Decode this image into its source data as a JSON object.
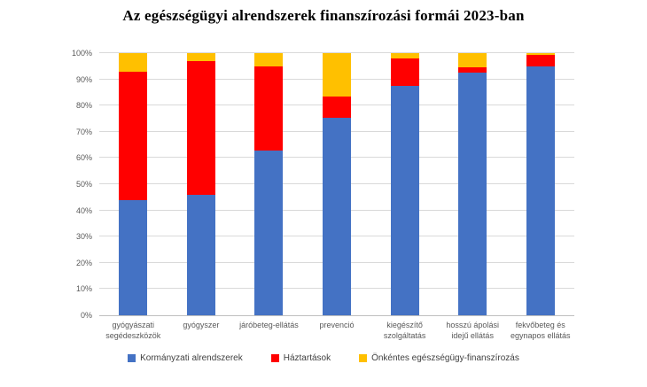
{
  "title": "Az egészségügyi alrendszerek finanszírozási formái 2023-ban",
  "chart_data": {
    "type": "bar",
    "stacked": true,
    "percent_stacked": true,
    "title": "Az egészségügyi alrendszerek finanszírozási formái 2023-ban",
    "categories": [
      "gyógyászati segédeszközök",
      "gyógyszer",
      "járóbeteg-ellátás",
      "prevenció",
      "kiegészítő szolgáltatás",
      "hosszú ápolási idejű ellátás",
      "fekvőbeteg és egynapos ellátás"
    ],
    "series": [
      {
        "name": "Kormányzati alrendszerek",
        "color": "#4472C4",
        "values": [
          44,
          46,
          63,
          75.5,
          87.5,
          92.5,
          95
        ]
      },
      {
        "name": "Háztartások",
        "color": "#FF0000",
        "values": [
          49,
          51,
          32,
          8,
          10.5,
          2,
          4.5
        ]
      },
      {
        "name": "Önkéntes egészségügy-finanszírozás",
        "color": "#FFC000",
        "values": [
          7,
          3,
          5,
          16.5,
          2,
          5.5,
          0.5
        ]
      }
    ],
    "xlabel": "",
    "ylabel": "",
    "ylim": [
      0,
      100
    ],
    "yticks": [
      "0%",
      "10%",
      "20%",
      "30%",
      "40%",
      "50%",
      "60%",
      "70%",
      "80%",
      "90%",
      "100%"
    ],
    "grid": true,
    "gridline_color": "#D9D9D9",
    "axis_line_color": "#BFBFBF",
    "tick_label_color": "#595959",
    "legend_text_color": "#404040",
    "legend_position": "bottom"
  }
}
